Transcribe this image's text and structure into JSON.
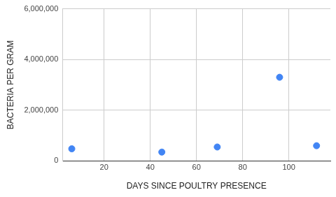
{
  "chart_data": {
    "type": "scatter",
    "x_label": "DAYS SINCE POULTRY PRESENCE",
    "y_label": "BACTERIA PER GRAM",
    "x": [
      6,
      45,
      69,
      96,
      112
    ],
    "values": [
      480000,
      350000,
      550000,
      3300000,
      600000
    ],
    "color": "#4285f4",
    "marker": "circle",
    "xlim": [
      2,
      118
    ],
    "xticks": [
      20,
      40,
      60,
      80,
      100
    ],
    "ylim": [
      0,
      6000000
    ],
    "yticks": [
      0,
      {
        "value": 2000000,
        "label": "2,000,000"
      },
      {
        "value": 4000000,
        "label": "4,000,000"
      },
      {
        "value": 6000000,
        "label": "6,000,000"
      }
    ],
    "grid": true
  }
}
